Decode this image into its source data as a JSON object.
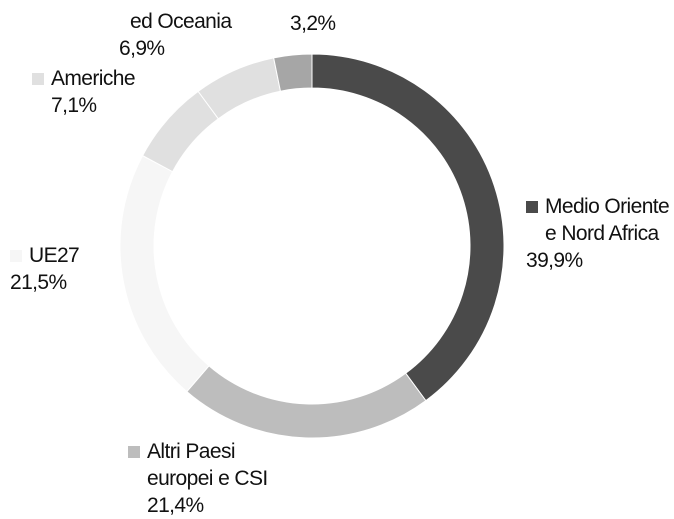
{
  "chart_data": {
    "type": "pie",
    "variant": "donut",
    "slices": [
      {
        "label_lines": [
          "Medio Oriente",
          "e Nord Africa"
        ],
        "value_text": "39,9%",
        "value": 39.9,
        "color": "#4a4a4a"
      },
      {
        "label_lines": [
          "Altri Paesi",
          "europei e CSI"
        ],
        "value_text": "21,4%",
        "value": 21.4,
        "color": "#bdbdbd"
      },
      {
        "label_lines": [
          "UE27"
        ],
        "value_text": "21,5%",
        "value": 21.5,
        "color": "#f6f6f6"
      },
      {
        "label_lines": [
          "Americhe"
        ],
        "value_text": "7,1%",
        "value": 7.1,
        "color": "#e0e0e0"
      },
      {
        "label_lines": [
          "ed Oceania"
        ],
        "value_text": "6,9%",
        "value": 6.9,
        "color": "#e0e0e0"
      },
      {
        "label_lines": [],
        "value_text": "3,2%",
        "value": 3.2,
        "color": "#a6a6a6"
      }
    ],
    "legend_placement": "labels beside slices"
  }
}
